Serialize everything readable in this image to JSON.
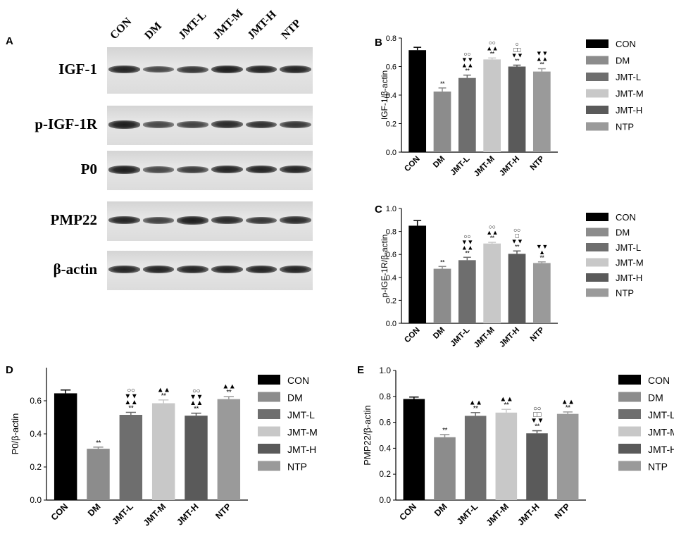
{
  "panel_letters": [
    "A",
    "B",
    "C",
    "D",
    "E"
  ],
  "blot": {
    "lanes": [
      "CON",
      "DM",
      "JMT-L",
      "JMT-M",
      "JMT-H",
      "NTP"
    ],
    "rows": [
      {
        "label": "IGF-1",
        "intensity": [
          0.85,
          0.55,
          0.7,
          0.9,
          0.85,
          0.85
        ]
      },
      {
        "label": "p-IGF-1R",
        "intensity": [
          0.9,
          0.55,
          0.6,
          0.8,
          0.75,
          0.7
        ]
      },
      {
        "label": "P0",
        "intensity": [
          0.9,
          0.55,
          0.65,
          0.85,
          0.85,
          0.85
        ]
      },
      {
        "label": "PMP22",
        "intensity": [
          0.85,
          0.6,
          0.9,
          0.8,
          0.7,
          0.8
        ]
      },
      {
        "label": "β-actin",
        "intensity": [
          0.85,
          0.85,
          0.85,
          0.85,
          0.85,
          0.85
        ]
      }
    ]
  },
  "colors": {
    "CON": "#000000",
    "DM": "#8c8c8c",
    "JMT-L": "#6e6e6e",
    "JMT-M": "#c8c8c8",
    "JMT-H": "#5a5a5a",
    "NTP": "#9a9a9a"
  },
  "chart_data": [
    {
      "panel": "B",
      "type": "bar",
      "categories": [
        "CON",
        "DM",
        "JMT-L",
        "JMT-M",
        "JMT-H",
        "NTP"
      ],
      "values": [
        0.715,
        0.425,
        0.52,
        0.65,
        0.6,
        0.565
      ],
      "errors": [
        0.02,
        0.025,
        0.02,
        0.01,
        0.01,
        0.02
      ],
      "annotations": [
        [],
        [
          "**"
        ],
        [
          "**",
          "▲▲",
          "▼▼",
          "○○"
        ],
        [
          "**",
          "▲▲",
          "○○"
        ],
        [
          "**",
          "▼▼",
          "□□",
          "○"
        ],
        [
          "**",
          "▲▲",
          "▼▼"
        ]
      ],
      "ylabel": "IGF-1/β-actin",
      "ylim": [
        0,
        0.8
      ],
      "yticks": [
        "0.0",
        "0.2",
        "0.4",
        "0.6",
        "0.8"
      ],
      "legend": [
        "CON",
        "DM",
        "JMT-L",
        "JMT-M",
        "JMT-H",
        "NTP"
      ]
    },
    {
      "panel": "C",
      "type": "bar",
      "categories": [
        "CON",
        "DM",
        "JMT-L",
        "JMT-M",
        "JMT-H",
        "NTP"
      ],
      "values": [
        0.85,
        0.475,
        0.55,
        0.695,
        0.605,
        0.525
      ],
      "errors": [
        0.045,
        0.02,
        0.025,
        0.01,
        0.025,
        0.01
      ],
      "annotations": [
        [],
        [
          "**"
        ],
        [
          "**",
          "▲▲",
          "▼▼",
          "○○"
        ],
        [
          "**",
          "▲▲",
          "○○"
        ],
        [
          "**",
          "▼▼",
          "□",
          "○○"
        ],
        [
          "**",
          "▲",
          "▼▼"
        ]
      ],
      "ylabel": "p-IGF-1R/β-actin",
      "ylim": [
        0,
        1.0
      ],
      "yticks": [
        "0.0",
        "0.2",
        "0.4",
        "0.6",
        "0.8",
        "1.0"
      ],
      "legend": [
        "CON",
        "DM",
        "JMT-L",
        "JMT-M",
        "JMT-H",
        "NTP"
      ]
    },
    {
      "panel": "D",
      "type": "bar",
      "categories": [
        "CON",
        "DM",
        "JMT-L",
        "JMT-M",
        "JMT-H",
        "NTP"
      ],
      "values": [
        0.645,
        0.31,
        0.515,
        0.585,
        0.51,
        0.61
      ],
      "errors": [
        0.02,
        0.01,
        0.015,
        0.02,
        0.015,
        0.015
      ],
      "annotations": [
        [],
        [
          "**"
        ],
        [
          "**",
          "▲▲",
          "▼▼",
          "○○"
        ],
        [
          "**",
          "▲▲"
        ],
        [
          "**",
          "▲▲",
          "▼▼",
          "○○"
        ],
        [
          "**",
          "▲▲"
        ]
      ],
      "ylabel": "P0/β-actin",
      "ylim": [
        0,
        0.8
      ],
      "yticks": [
        "0.0",
        "0.2",
        "0.4",
        "0.6"
      ],
      "legend": [
        "CON",
        "DM",
        "JMT-L",
        "JMT-M",
        "JMT-H",
        "NTP"
      ]
    },
    {
      "panel": "E",
      "type": "bar",
      "categories": [
        "CON",
        "DM",
        "JMT-L",
        "JMT-M",
        "JMT-H",
        "NTP"
      ],
      "values": [
        0.78,
        0.485,
        0.65,
        0.675,
        0.515,
        0.665
      ],
      "errors": [
        0.015,
        0.02,
        0.025,
        0.025,
        0.02,
        0.015
      ],
      "annotations": [
        [],
        [
          "**"
        ],
        [
          "**",
          "▲▲"
        ],
        [
          "**",
          "▲▲"
        ],
        [
          "**",
          "▼▼",
          "□□",
          "○○"
        ],
        [
          "**",
          "▲▲"
        ]
      ],
      "ylabel": "PMP22/β-actin",
      "ylim": [
        0,
        1.0
      ],
      "yticks": [
        "0.0",
        "0.2",
        "0.4",
        "0.6",
        "0.8",
        "1.0"
      ],
      "legend": [
        "CON",
        "DM",
        "JMT-L",
        "JMT-M",
        "JMT-H",
        "NTP"
      ]
    }
  ]
}
